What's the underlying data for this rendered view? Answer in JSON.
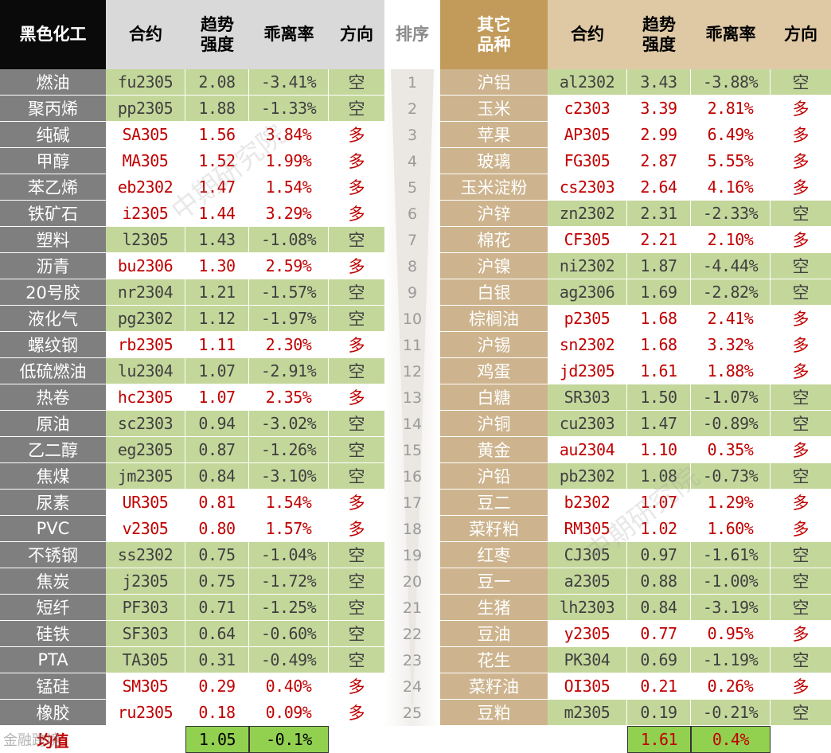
{
  "headers": {
    "left_group": "黑色化工",
    "contract": "合约",
    "trend": "趋势\n强度",
    "deviation": "乖离率",
    "direction": "方向",
    "rank": "排序",
    "right_group": "其它\n品种"
  },
  "colors": {
    "header_black": "#0a0a0a",
    "header_gray": "#d9d9d9",
    "header_gold": "#c29a5a",
    "header_tan": "#dfc9a5",
    "left_name_bg": "#7f7f7f",
    "right_name_bg": "#cdb48e",
    "short_bg": "#c4d79b",
    "long_bg": "#ffffff",
    "long_text": "#c00000",
    "short_text": "#404040",
    "avg_bg": "#92d050",
    "avg_label": "#c00000"
  },
  "left_rows": [
    {
      "name": "燃油",
      "contract": "fu2305",
      "trend": "2.08",
      "dev": "-3.41%",
      "dir": "空"
    },
    {
      "name": "聚丙烯",
      "contract": "pp2305",
      "trend": "1.88",
      "dev": "-1.33%",
      "dir": "空"
    },
    {
      "name": "纯碱",
      "contract": "SA305",
      "trend": "1.56",
      "dev": "3.84%",
      "dir": "多"
    },
    {
      "name": "甲醇",
      "contract": "MA305",
      "trend": "1.52",
      "dev": "1.99%",
      "dir": "多"
    },
    {
      "name": "苯乙烯",
      "contract": "eb2302",
      "trend": "1.47",
      "dev": "1.54%",
      "dir": "多"
    },
    {
      "name": "铁矿石",
      "contract": "i2305",
      "trend": "1.44",
      "dev": "3.29%",
      "dir": "多"
    },
    {
      "name": "塑料",
      "contract": "l2305",
      "trend": "1.43",
      "dev": "-1.08%",
      "dir": "空"
    },
    {
      "name": "沥青",
      "contract": "bu2306",
      "trend": "1.30",
      "dev": "2.59%",
      "dir": "多"
    },
    {
      "name": "20号胶",
      "contract": "nr2304",
      "trend": "1.21",
      "dev": "-1.57%",
      "dir": "空"
    },
    {
      "name": "液化气",
      "contract": "pg2302",
      "trend": "1.12",
      "dev": "-1.97%",
      "dir": "空"
    },
    {
      "name": "螺纹钢",
      "contract": "rb2305",
      "trend": "1.11",
      "dev": "2.30%",
      "dir": "多"
    },
    {
      "name": "低硫燃油",
      "contract": "lu2304",
      "trend": "1.07",
      "dev": "-2.91%",
      "dir": "空"
    },
    {
      "name": "热卷",
      "contract": "hc2305",
      "trend": "1.07",
      "dev": "2.35%",
      "dir": "多"
    },
    {
      "name": "原油",
      "contract": "sc2303",
      "trend": "0.94",
      "dev": "-3.02%",
      "dir": "空"
    },
    {
      "name": "乙二醇",
      "contract": "eg2305",
      "trend": "0.87",
      "dev": "-1.26%",
      "dir": "空"
    },
    {
      "name": "焦煤",
      "contract": "jm2305",
      "trend": "0.84",
      "dev": "-3.10%",
      "dir": "空"
    },
    {
      "name": "尿素",
      "contract": "UR305",
      "trend": "0.81",
      "dev": "1.54%",
      "dir": "多"
    },
    {
      "name": "PVC",
      "contract": "v2305",
      "trend": "0.80",
      "dev": "1.57%",
      "dir": "多"
    },
    {
      "name": "不锈钢",
      "contract": "ss2302",
      "trend": "0.75",
      "dev": "-1.04%",
      "dir": "空"
    },
    {
      "name": "焦炭",
      "contract": "j2305",
      "trend": "0.75",
      "dev": "-1.72%",
      "dir": "空"
    },
    {
      "name": "短纤",
      "contract": "PF303",
      "trend": "0.71",
      "dev": "-1.25%",
      "dir": "空"
    },
    {
      "name": "硅铁",
      "contract": "SF303",
      "trend": "0.64",
      "dev": "-0.60%",
      "dir": "空"
    },
    {
      "name": "PTA",
      "contract": "TA305",
      "trend": "0.31",
      "dev": "-0.49%",
      "dir": "空"
    },
    {
      "name": "锰硅",
      "contract": "SM305",
      "trend": "0.29",
      "dev": "0.40%",
      "dir": "多"
    },
    {
      "name": "橡胶",
      "contract": "ru2305",
      "trend": "0.18",
      "dev": "0.09%",
      "dir": "多"
    }
  ],
  "ranks": [
    "1",
    "2",
    "3",
    "4",
    "5",
    "6",
    "7",
    "8",
    "9",
    "10",
    "11",
    "12",
    "13",
    "14",
    "15",
    "16",
    "17",
    "18",
    "19",
    "20",
    "21",
    "22",
    "23",
    "24",
    "25"
  ],
  "right_rows": [
    {
      "name": "沪铝",
      "contract": "al2302",
      "trend": "3.43",
      "dev": "-3.88%",
      "dir": "空"
    },
    {
      "name": "玉米",
      "contract": "c2303",
      "trend": "3.39",
      "dev": "2.81%",
      "dir": "多"
    },
    {
      "name": "苹果",
      "contract": "AP305",
      "trend": "2.99",
      "dev": "6.49%",
      "dir": "多"
    },
    {
      "name": "玻璃",
      "contract": "FG305",
      "trend": "2.87",
      "dev": "5.55%",
      "dir": "多"
    },
    {
      "name": "玉米淀粉",
      "contract": "cs2303",
      "trend": "2.64",
      "dev": "4.16%",
      "dir": "多"
    },
    {
      "name": "沪锌",
      "contract": "zn2302",
      "trend": "2.31",
      "dev": "-2.33%",
      "dir": "空"
    },
    {
      "name": "棉花",
      "contract": "CF305",
      "trend": "2.21",
      "dev": "2.10%",
      "dir": "多"
    },
    {
      "name": "沪镍",
      "contract": "ni2302",
      "trend": "1.87",
      "dev": "-4.44%",
      "dir": "空"
    },
    {
      "name": "白银",
      "contract": "ag2306",
      "trend": "1.69",
      "dev": "-2.82%",
      "dir": "空"
    },
    {
      "name": "棕榈油",
      "contract": "p2305",
      "trend": "1.68",
      "dev": "2.41%",
      "dir": "多"
    },
    {
      "name": "沪锡",
      "contract": "sn2302",
      "trend": "1.68",
      "dev": "3.32%",
      "dir": "多"
    },
    {
      "name": "鸡蛋",
      "contract": "jd2305",
      "trend": "1.61",
      "dev": "1.88%",
      "dir": "多"
    },
    {
      "name": "白糖",
      "contract": "SR303",
      "trend": "1.50",
      "dev": "-1.07%",
      "dir": "空"
    },
    {
      "name": "沪铜",
      "contract": "cu2303",
      "trend": "1.47",
      "dev": "-0.89%",
      "dir": "空"
    },
    {
      "name": "黄金",
      "contract": "au2304",
      "trend": "1.10",
      "dev": "0.35%",
      "dir": "多"
    },
    {
      "name": "沪铅",
      "contract": "pb2302",
      "trend": "1.08",
      "dev": "-0.73%",
      "dir": "空"
    },
    {
      "name": "豆二",
      "contract": "b2302",
      "trend": "1.07",
      "dev": "1.29%",
      "dir": "多"
    },
    {
      "name": "菜籽粕",
      "contract": "RM305",
      "trend": "1.02",
      "dev": "1.60%",
      "dir": "多"
    },
    {
      "name": "红枣",
      "contract": "CJ305",
      "trend": "0.97",
      "dev": "-1.61%",
      "dir": "空"
    },
    {
      "name": "豆一",
      "contract": "a2305",
      "trend": "0.88",
      "dev": "-1.00%",
      "dir": "空"
    },
    {
      "name": "生猪",
      "contract": "lh2303",
      "trend": "0.84",
      "dev": "-3.19%",
      "dir": "空"
    },
    {
      "name": "豆油",
      "contract": "y2305",
      "trend": "0.77",
      "dev": "0.95%",
      "dir": "多"
    },
    {
      "name": "花生",
      "contract": "PK304",
      "trend": "0.69",
      "dev": "-1.19%",
      "dir": "空"
    },
    {
      "name": "菜籽油",
      "contract": "OI305",
      "trend": "0.21",
      "dev": "0.26%",
      "dir": "多"
    },
    {
      "name": "豆粕",
      "contract": "m2305",
      "trend": "0.19",
      "dev": "-0.21%",
      "dir": "空"
    }
  ],
  "average": {
    "label": "均值",
    "left_trend": "1.05",
    "left_dev": "-0.1%",
    "right_trend": "1.61",
    "right_dev": "0.4%"
  },
  "watermark": "中期研究院",
  "footer_logo": "金融跨境"
}
